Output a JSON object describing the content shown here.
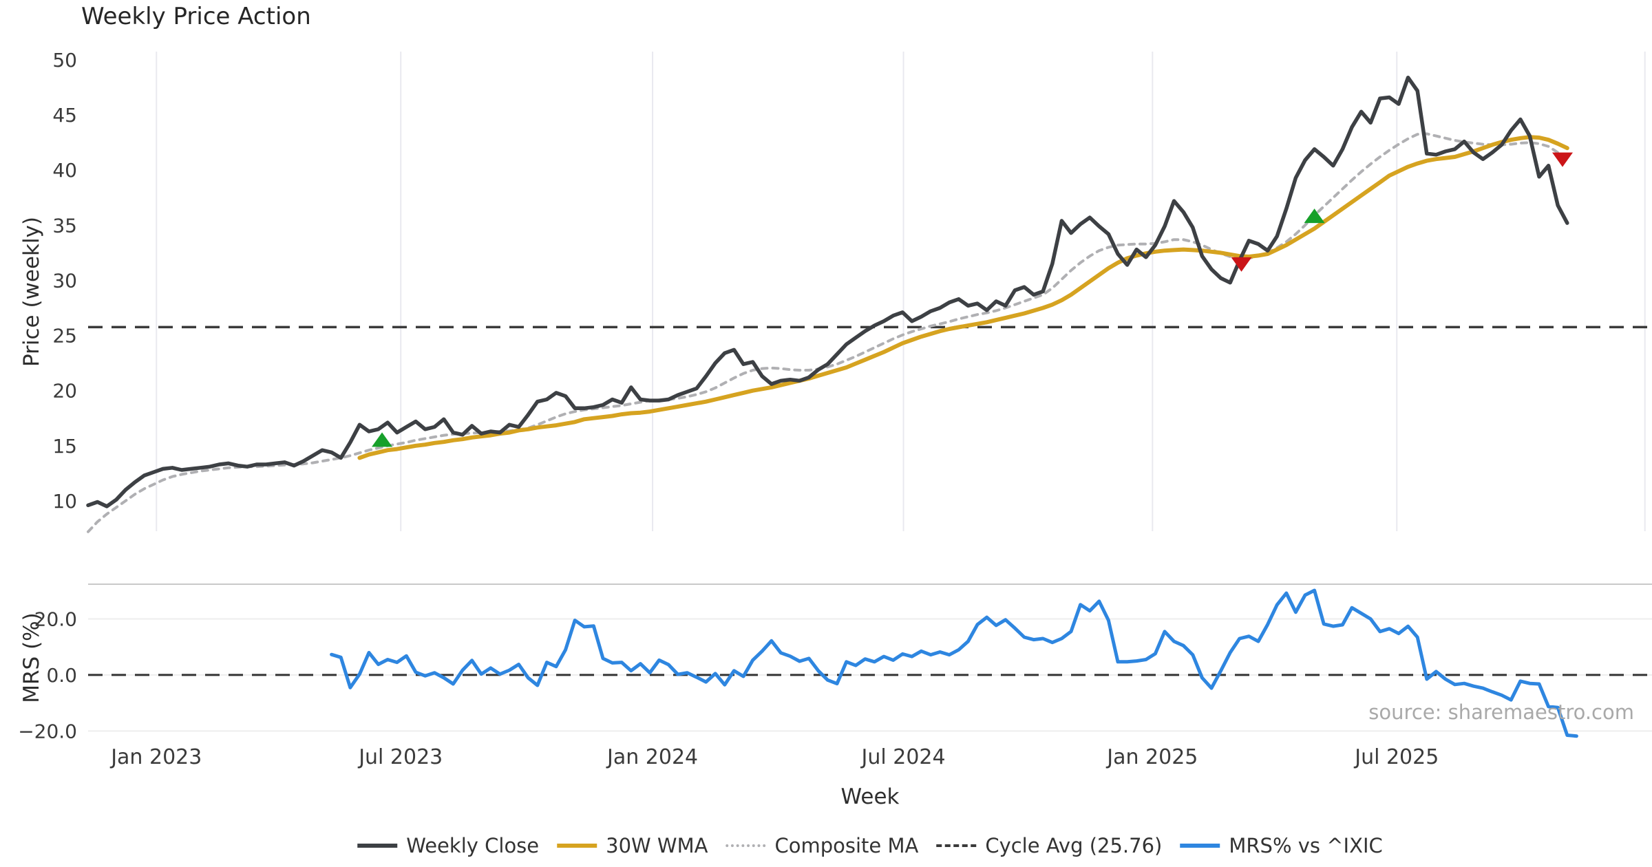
{
  "title": "Weekly Price Action",
  "source_note": "source: sharemaestro.com",
  "colors": {
    "weekly_close": "#3d4044",
    "wma": "#d6a320",
    "composite": "#b0b0b3",
    "cycle_avg": "#3a3a3a",
    "mrs": "#2e86e0",
    "buy_marker": "#17a02a",
    "sell_marker": "#cb1518",
    "grid": "#e9e9ef",
    "grid_light": "#ededed",
    "panel_border": "#c9c9c9",
    "background": "#ffffff"
  },
  "axes": {
    "x_label": "Week",
    "price_ylabel": "Price (weekly)",
    "mrs_ylabel": "MRS (%)"
  },
  "legend": [
    {
      "label": "Weekly Close",
      "style": "solid",
      "color": "#3d4044"
    },
    {
      "label": "30W WMA",
      "style": "solid",
      "color": "#d6a320"
    },
    {
      "label": "Composite MA",
      "style": "dotted",
      "color": "#b0b0b3"
    },
    {
      "label": "Cycle Avg (25.76)",
      "style": "dashed",
      "color": "#3a3a3a"
    },
    {
      "label": "MRS% vs ^IXIC",
      "style": "solid",
      "color": "#2e86e0"
    }
  ],
  "chart_data": [
    {
      "type": "line",
      "panel": "price",
      "title": "Weekly Price Action",
      "ylabel": "Price (weekly)",
      "x_unit": "week_index",
      "ylim": [
        7.06,
        50.75
      ],
      "grid": "vertical-only",
      "y_ticks": [
        50,
        45,
        40,
        35,
        30,
        25,
        20,
        15,
        10
      ],
      "x_ticks": [
        {
          "label": "Jan 2023",
          "week": 7.3
        },
        {
          "label": "Jul 2023",
          "week": 33.4
        },
        {
          "label": "Jan 2024",
          "week": 60.3
        },
        {
          "label": "Jul 2024",
          "week": 87.1
        },
        {
          "label": "Jan 2025",
          "week": 113.7
        },
        {
          "label": "Jul 2025",
          "week": 139.8
        },
        {
          "label": "",
          "week": 166.3
        }
      ],
      "cycle_avg": 25.76,
      "series": [
        {
          "name": "Composite MA",
          "dash": "dotted",
          "color": "#b0b0b3",
          "width": 4,
          "start_week": 0,
          "values": [
            7.2,
            8.1,
            8.8,
            9.4,
            10.0,
            10.6,
            11.1,
            11.5,
            11.9,
            12.2,
            12.4,
            12.55,
            12.7,
            12.8,
            12.9,
            13.0,
            13.05,
            13.1,
            13.1,
            13.15,
            13.2,
            13.25,
            13.3,
            13.35,
            13.45,
            13.6,
            13.75,
            13.9,
            14.1,
            14.35,
            14.6,
            14.8,
            15.0,
            15.15,
            15.3,
            15.5,
            15.65,
            15.8,
            15.95,
            16.05,
            16.1,
            16.15,
            16.2,
            16.25,
            16.3,
            16.35,
            16.45,
            16.6,
            16.9,
            17.25,
            17.6,
            17.9,
            18.1,
            18.25,
            18.35,
            18.45,
            18.55,
            18.65,
            18.8,
            18.95,
            19.1,
            19.15,
            19.2,
            19.3,
            19.45,
            19.65,
            19.9,
            20.25,
            20.7,
            21.15,
            21.55,
            21.85,
            22.0,
            22.05,
            22.0,
            21.9,
            21.85,
            21.85,
            21.95,
            22.15,
            22.4,
            22.75,
            23.1,
            23.5,
            23.9,
            24.3,
            24.7,
            25.05,
            25.35,
            25.6,
            25.85,
            26.05,
            26.25,
            26.5,
            26.7,
            26.9,
            27.05,
            27.25,
            27.5,
            27.8,
            28.1,
            28.4,
            28.7,
            29.3,
            30.1,
            30.9,
            31.6,
            32.2,
            32.7,
            33.0,
            33.2,
            33.25,
            33.3,
            33.3,
            33.35,
            33.5,
            33.7,
            33.7,
            33.5,
            33.2,
            32.8,
            32.45,
            32.15,
            31.95,
            32.0,
            32.2,
            32.5,
            32.95,
            33.5,
            34.2,
            35.0,
            35.9,
            36.7,
            37.5,
            38.3,
            39.1,
            39.85,
            40.55,
            41.2,
            41.8,
            42.35,
            42.85,
            43.25,
            43.3,
            43.1,
            42.9,
            42.7,
            42.55,
            42.45,
            42.35,
            42.3,
            42.3,
            42.35,
            42.45,
            42.5,
            42.4,
            42.15,
            41.6,
            40.9
          ]
        },
        {
          "name": "30W WMA",
          "dash": "solid",
          "color": "#d6a320",
          "width": 6,
          "start_week": 29,
          "values": [
            13.9,
            14.2,
            14.4,
            14.6,
            14.7,
            14.85,
            15.0,
            15.1,
            15.25,
            15.35,
            15.5,
            15.6,
            15.75,
            15.85,
            15.95,
            16.1,
            16.2,
            16.4,
            16.5,
            16.65,
            16.75,
            16.85,
            17.0,
            17.15,
            17.4,
            17.5,
            17.6,
            17.7,
            17.85,
            17.95,
            18.0,
            18.1,
            18.25,
            18.4,
            18.55,
            18.7,
            18.85,
            19.0,
            19.2,
            19.4,
            19.6,
            19.8,
            20.0,
            20.15,
            20.3,
            20.5,
            20.7,
            20.9,
            21.1,
            21.35,
            21.6,
            21.85,
            22.1,
            22.45,
            22.8,
            23.15,
            23.5,
            23.9,
            24.3,
            24.6,
            24.9,
            25.15,
            25.4,
            25.6,
            25.75,
            25.9,
            26.05,
            26.2,
            26.4,
            26.6,
            26.8,
            27.0,
            27.25,
            27.5,
            27.8,
            28.2,
            28.7,
            29.3,
            29.9,
            30.5,
            31.1,
            31.6,
            32.0,
            32.25,
            32.45,
            32.6,
            32.7,
            32.75,
            32.8,
            32.75,
            32.7,
            32.6,
            32.5,
            32.35,
            32.2,
            32.15,
            32.25,
            32.4,
            32.8,
            33.2,
            33.7,
            34.2,
            34.7,
            35.3,
            35.9,
            36.5,
            37.1,
            37.7,
            38.3,
            38.9,
            39.5,
            39.9,
            40.3,
            40.6,
            40.85,
            41.0,
            41.1,
            41.2,
            41.45,
            41.7,
            42.0,
            42.3,
            42.55,
            42.75,
            42.9,
            43.0,
            42.95,
            42.75,
            42.4,
            42.0
          ]
        },
        {
          "name": "Weekly Close",
          "dash": "solid",
          "color": "#3d4044",
          "width": 5.5,
          "start_week": 0,
          "values": [
            9.6,
            9.9,
            9.5,
            10.1,
            11.0,
            11.7,
            12.3,
            12.6,
            12.9,
            13.0,
            12.8,
            12.9,
            13.0,
            13.1,
            13.3,
            13.4,
            13.2,
            13.1,
            13.3,
            13.3,
            13.4,
            13.5,
            13.2,
            13.6,
            14.1,
            14.6,
            14.4,
            13.9,
            15.3,
            16.9,
            16.3,
            16.5,
            17.1,
            16.2,
            16.7,
            17.2,
            16.5,
            16.7,
            17.4,
            16.2,
            16.0,
            16.8,
            16.1,
            16.3,
            16.2,
            16.9,
            16.7,
            17.8,
            19.0,
            19.2,
            19.8,
            19.5,
            18.4,
            18.4,
            18.5,
            18.7,
            19.2,
            18.9,
            20.3,
            19.2,
            19.1,
            19.1,
            19.2,
            19.6,
            19.9,
            20.2,
            21.3,
            22.5,
            23.4,
            23.7,
            22.4,
            22.6,
            21.3,
            20.6,
            20.9,
            21.0,
            20.9,
            21.2,
            21.9,
            22.4,
            23.3,
            24.2,
            24.8,
            25.4,
            25.9,
            26.3,
            26.8,
            27.1,
            26.3,
            26.7,
            27.2,
            27.5,
            28.0,
            28.3,
            27.7,
            27.9,
            27.3,
            28.1,
            27.7,
            29.1,
            29.4,
            28.7,
            29.0,
            31.5,
            35.4,
            34.3,
            35.1,
            35.7,
            34.9,
            34.2,
            32.4,
            31.4,
            32.8,
            32.1,
            33.2,
            34.9,
            37.2,
            36.2,
            34.8,
            32.2,
            31.0,
            30.2,
            29.8,
            31.8,
            33.6,
            33.3,
            32.7,
            34.0,
            36.5,
            39.3,
            40.9,
            41.9,
            41.2,
            40.4,
            41.9,
            43.9,
            45.3,
            44.3,
            46.5,
            46.6,
            46.0,
            48.4,
            47.2,
            41.5,
            41.4,
            41.7,
            41.9,
            42.6,
            41.6,
            41.0,
            41.6,
            42.3,
            43.6,
            44.6,
            43.1,
            39.4,
            40.4,
            36.8,
            35.2
          ]
        }
      ],
      "markers": {
        "buy": {
          "shape": "triangle-up",
          "color": "#17a02a",
          "points": [
            {
              "week": 31.4,
              "price": 15.4
            },
            {
              "week": 131.0,
              "price": 35.7
            }
          ]
        },
        "sell": {
          "shape": "triangle-down",
          "color": "#cb1518",
          "points": [
            {
              "week": 123.2,
              "price": 31.6
            },
            {
              "week": 157.5,
              "price": 41.1
            }
          ]
        }
      }
    },
    {
      "type": "line",
      "panel": "mrs",
      "ylabel": "MRS (%)",
      "ylim": [
        -23.1,
        32.4
      ],
      "zero_line": 0,
      "y_ticks": [
        {
          "label": "20.0",
          "value": 20
        },
        {
          "label": "0.0",
          "value": 0
        },
        {
          "label": "−20.0",
          "value": -20
        }
      ],
      "series": [
        {
          "name": "MRS% vs ^IXIC",
          "dash": "solid",
          "color": "#2e86e0",
          "width": 5,
          "start_week": 26,
          "values": [
            7.3,
            6.3,
            -4.5,
            0.3,
            8.0,
            3.8,
            5.5,
            4.5,
            6.8,
            1.0,
            -0.3,
            0.8,
            -1.0,
            -3.2,
            1.7,
            5.2,
            0.3,
            2.5,
            0.3,
            1.7,
            3.8,
            -1.0,
            -3.7,
            4.5,
            3.0,
            9.0,
            19.5,
            17.2,
            17.5,
            5.9,
            4.3,
            4.5,
            1.5,
            4.0,
            0.8,
            5.3,
            3.7,
            0.2,
            0.8,
            -0.8,
            -2.5,
            0.5,
            -3.5,
            1.5,
            -0.5,
            5.3,
            8.5,
            12.2,
            7.9,
            6.7,
            4.9,
            5.9,
            1.5,
            -1.8,
            -3.1,
            4.7,
            3.4,
            5.7,
            4.7,
            6.6,
            5.3,
            7.5,
            6.6,
            8.5,
            7.2,
            8.2,
            7.2,
            9.0,
            12.0,
            18.0,
            20.6,
            17.7,
            19.7,
            16.7,
            13.5,
            12.6,
            13.0,
            11.6,
            13.0,
            15.5,
            25.1,
            22.9,
            26.3,
            19.5,
            4.7,
            4.7,
            5.0,
            5.5,
            7.6,
            15.5,
            12.0,
            10.5,
            7.2,
            -1.0,
            -4.7,
            1.5,
            8.0,
            13.0,
            13.8,
            12.0,
            18.0,
            25.0,
            29.2,
            22.4,
            28.5,
            30.2,
            18.2,
            17.4,
            17.9,
            24.0,
            22.0,
            20.0,
            15.5,
            16.5,
            14.8,
            17.4,
            13.5,
            -1.5,
            1.2,
            -1.5,
            -3.4,
            -3.0,
            -4.0,
            -4.7,
            -6.0,
            -7.2,
            -8.9,
            -2.2,
            -3.0,
            -3.2,
            -11.3,
            -11.6,
            -21.5,
            -21.8
          ]
        }
      ]
    }
  ]
}
